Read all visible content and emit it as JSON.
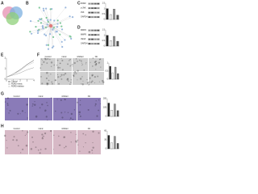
{
  "panels": {
    "a": {
      "label": "A"
    },
    "b": {
      "label": "B"
    },
    "c": {
      "label": "C",
      "blot": [
        "ROR2",
        "p-JNK",
        "JNK",
        "GAPDH"
      ],
      "bars": {
        "values": [
          1,
          0.45,
          0.95,
          0.4
        ],
        "colors": [
          "#222",
          "#fff",
          "#999",
          "#555"
        ],
        "ylim": [
          0,
          1.5
        ],
        "yticks": [
          0,
          0.5,
          1,
          1.5
        ]
      }
    },
    "d": {
      "label": "D",
      "blot": [
        "MMP2",
        "MMP9",
        "VEGF",
        "GAPDH"
      ],
      "bars": {
        "values": [
          1,
          0.5,
          0.9,
          0.45
        ],
        "colors": [
          "#222",
          "#fff",
          "#999",
          "#555"
        ],
        "ylim": [
          0,
          1.5
        ],
        "yticks": [
          0,
          0.5,
          1,
          1.5
        ]
      }
    },
    "e": {
      "label": "E",
      "x": [
        0,
        1,
        2,
        3,
        4
      ],
      "xlim": [
        0,
        4
      ],
      "ylim": [
        0,
        2
      ],
      "yticks": [
        0,
        1,
        2
      ],
      "series": [
        {
          "name": "Control",
          "color": "#222",
          "values": [
            0.2,
            0.5,
            0.9,
            1.4,
            1.8
          ]
        },
        {
          "name": "ROR2-mimic",
          "color": "#888",
          "values": [
            0.2,
            0.4,
            0.6,
            0.9,
            1.1
          ]
        },
        {
          "name": "ROR2-inhibitor",
          "color": "#bbb",
          "values": [
            0.2,
            0.5,
            0.8,
            1.3,
            1.6
          ]
        }
      ]
    },
    "f": {
      "label": "F",
      "columns": [
        "Control",
        "mimic",
        "inhibitor",
        "NC"
      ],
      "bars": {
        "values": [
          0.8,
          0.4,
          0.75,
          0.35
        ],
        "colors": [
          "#222",
          "#fff",
          "#999",
          "#555"
        ],
        "ylim": [
          0,
          1
        ],
        "yticks": [
          0,
          0.5,
          1
        ]
      }
    },
    "g": {
      "label": "G",
      "columns": [
        "Control",
        "mimic",
        "inhibitor",
        "NC"
      ],
      "bars": {
        "values": [
          150,
          70,
          140,
          65
        ],
        "colors": [
          "#222",
          "#fff",
          "#999",
          "#555"
        ],
        "ylim": [
          0,
          200
        ],
        "yticks": [
          0,
          100,
          200
        ]
      }
    },
    "h": {
      "label": "H",
      "columns": [
        "Control",
        "mimic",
        "inhibitor",
        "NC"
      ],
      "bars": {
        "values": [
          45,
          20,
          42,
          18
        ],
        "colors": [
          "#222",
          "#fff",
          "#999",
          "#555"
        ],
        "ylim": [
          0,
          60
        ],
        "yticks": [
          0,
          30,
          60
        ]
      }
    }
  }
}
